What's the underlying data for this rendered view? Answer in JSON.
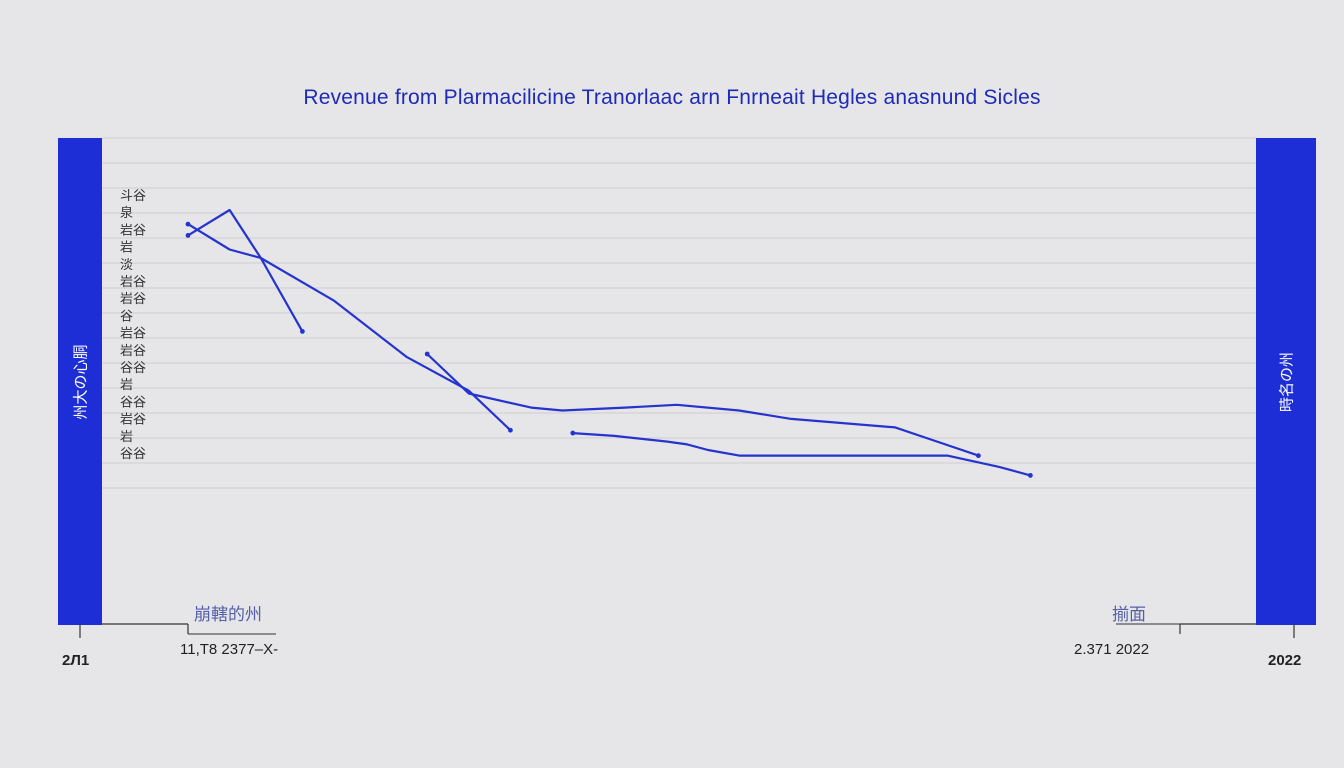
{
  "title": "Revenue from Plarmacilicine Tranorlaac arn Fnrneait Hegles anasnund Sicles",
  "left_bar_label": "州大の心胴",
  "right_bar_label": "時名の州",
  "colors": {
    "line": "#2533cf",
    "bar": "#1e2ed6",
    "title": "#1e2ab8",
    "grid": "#cfcfd3"
  },
  "x_labels": {
    "left_edge": "2Л1",
    "left_inner": "11,T8 2377–X-",
    "right_inner": "2.371 2022",
    "right_edge": "2022"
  },
  "mid_labels": {
    "left": "崩轄的州",
    "right": "揃面"
  },
  "y_tick_labels": [
    "斗谷",
    "泉",
    "岩谷",
    "岩",
    "淡",
    "岩谷",
    "岩谷",
    "谷",
    "岩谷",
    "岩谷",
    "谷谷",
    "岩",
    "谷谷",
    "岩谷",
    "岩",
    "谷谷"
  ],
  "chart_data": {
    "type": "line",
    "title": "Revenue from Plarmacilicine Tranorlaac arn Fnrneait Hegles anasnund Sicles",
    "xlabel": "",
    "ylabel": "",
    "grid": true,
    "series": [
      {
        "values": [
          [
            0.0,
            0.76
          ],
          [
            0.04,
            0.85
          ],
          [
            0.07,
            0.68
          ],
          [
            0.11,
            0.42
          ]
        ]
      },
      {
        "values": [
          [
            0.0,
            0.8
          ],
          [
            0.04,
            0.71
          ],
          [
            0.07,
            0.68
          ],
          [
            0.14,
            0.53
          ],
          [
            0.21,
            0.33
          ],
          [
            0.27,
            0.21
          ],
          [
            0.31,
            0.07
          ]
        ]
      },
      {
        "values": [
          [
            0.23,
            0.34
          ],
          [
            0.27,
            0.2
          ],
          [
            0.33,
            0.15
          ],
          [
            0.36,
            0.14
          ],
          [
            0.42,
            0.15
          ],
          [
            0.47,
            0.16
          ],
          [
            0.53,
            0.14
          ],
          [
            0.58,
            0.11
          ],
          [
            0.68,
            0.08
          ],
          [
            0.72,
            0.03
          ],
          [
            0.76,
            -0.02
          ]
        ]
      },
      {
        "values": [
          [
            0.37,
            0.06
          ],
          [
            0.41,
            0.05
          ],
          [
            0.46,
            0.03
          ],
          [
            0.48,
            0.02
          ],
          [
            0.5,
            0.0
          ],
          [
            0.53,
            -0.02
          ],
          [
            0.66,
            -0.02
          ],
          [
            0.73,
            -0.02
          ],
          [
            0.78,
            -0.06
          ],
          [
            0.81,
            -0.09
          ]
        ]
      }
    ]
  }
}
